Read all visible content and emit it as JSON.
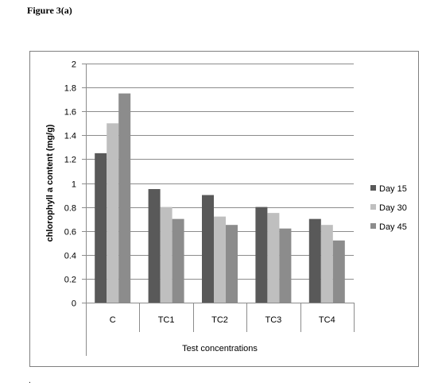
{
  "figure_label": "Figure 3(a)",
  "trailing_mark": ".",
  "chart_data": {
    "type": "bar",
    "title": "",
    "categories": [
      "C",
      "TC1",
      "TC2",
      "TC3",
      "TC4"
    ],
    "series": [
      {
        "name": "Day 15",
        "color": "#595959",
        "values": [
          1.25,
          0.95,
          0.9,
          0.8,
          0.7
        ]
      },
      {
        "name": "Day 30",
        "color": "#bfbfbf",
        "values": [
          1.5,
          0.8,
          0.72,
          0.75,
          0.65
        ]
      },
      {
        "name": "Day 45",
        "color": "#8c8c8c",
        "values": [
          1.75,
          0.7,
          0.65,
          0.62,
          0.52
        ]
      }
    ],
    "xlabel": "Test concentrations",
    "ylabel": "chlorophyll a content (mg/g)",
    "ylim": [
      0,
      2
    ],
    "yticks": [
      "0",
      "0.2",
      "0.4",
      "0.6",
      "0.8",
      "1",
      "1.2",
      "1.4",
      "1.6",
      "1.8",
      "2"
    ],
    "grid": true,
    "legend_position": "right"
  }
}
